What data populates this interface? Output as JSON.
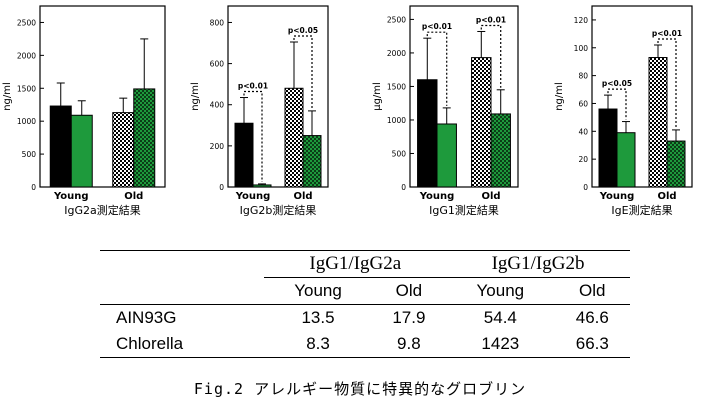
{
  "chart_data": [
    {
      "type": "bar",
      "title": "IgG2a測定結果",
      "ylabel": "ng/ml",
      "ylim": [
        0,
        2750
      ],
      "yticks": [
        0,
        500,
        1000,
        1500,
        2000,
        2500
      ],
      "categories": [
        "Young",
        "Old"
      ],
      "series": [
        {
          "values": [
            1230,
            1130
          ],
          "errors": [
            350,
            220
          ]
        },
        {
          "values": [
            1090,
            1490
          ],
          "errors": [
            220,
            760
          ]
        }
      ],
      "annotations": []
    },
    {
      "type": "bar",
      "title": "IgG2b測定結果",
      "ylabel": "ng/ml",
      "ylim": [
        0,
        880
      ],
      "yticks": [
        0,
        200,
        400,
        600,
        800
      ],
      "categories": [
        "Young",
        "Old"
      ],
      "series": [
        {
          "values": [
            310,
            480
          ],
          "errors": [
            125,
            225
          ]
        },
        {
          "values": [
            10,
            250
          ],
          "errors": [
            5,
            120
          ]
        }
      ],
      "annotations": [
        {
          "category": "Young",
          "text": "p<0.01"
        },
        {
          "category": "Old",
          "text": "p<0.05"
        }
      ]
    },
    {
      "type": "bar",
      "title": "IgG1測定結果",
      "ylabel": "μg/ml",
      "ylim": [
        0,
        2700
      ],
      "yticks": [
        0,
        500,
        1000,
        1500,
        2000,
        2500
      ],
      "categories": [
        "Young",
        "Old"
      ],
      "series": [
        {
          "values": [
            1600,
            1930
          ],
          "errors": [
            620,
            390
          ]
        },
        {
          "values": [
            940,
            1090
          ],
          "errors": [
            240,
            360
          ]
        }
      ],
      "annotations": [
        {
          "category": "Young",
          "text": "p<0.01"
        },
        {
          "category": "Old",
          "text": "p<0.01"
        }
      ]
    },
    {
      "type": "bar",
      "title": "IgE測定結果",
      "ylabel": "ng/ml",
      "ylim": [
        0,
        130
      ],
      "yticks": [
        0,
        20,
        40,
        60,
        80,
        100,
        120
      ],
      "categories": [
        "Young",
        "Old"
      ],
      "series": [
        {
          "values": [
            56,
            93
          ],
          "errors": [
            10,
            9
          ]
        },
        {
          "values": [
            39,
            33
          ],
          "errors": [
            8,
            8
          ]
        }
      ],
      "annotations": [
        {
          "category": "Young",
          "text": "p<0.05"
        },
        {
          "category": "Old",
          "text": "p<0.01"
        }
      ]
    }
  ],
  "colors": {
    "young_ain": "#000000",
    "young_chlorella": "#1e9a3c",
    "old_ain_fill": "#ffffff",
    "old_ain_pattern": "#000000",
    "old_chlorella_fill": "#1e9a3c",
    "old_chlorella_pattern": "#000000"
  },
  "table": {
    "headers": [
      "IgG1/IgG2a",
      "IgG1/IgG2b"
    ],
    "subheaders": [
      "Young",
      "Old",
      "Young",
      "Old"
    ],
    "rows": [
      {
        "label": "AIN93G",
        "values": [
          "13.5",
          "17.9",
          "54.4",
          "46.6"
        ]
      },
      {
        "label": "Chlorella",
        "values": [
          "8.3",
          "9.8",
          "1423",
          "66.3"
        ]
      }
    ]
  },
  "caption": "Fig.2 アレルギー物質に特異的なグロブリン"
}
